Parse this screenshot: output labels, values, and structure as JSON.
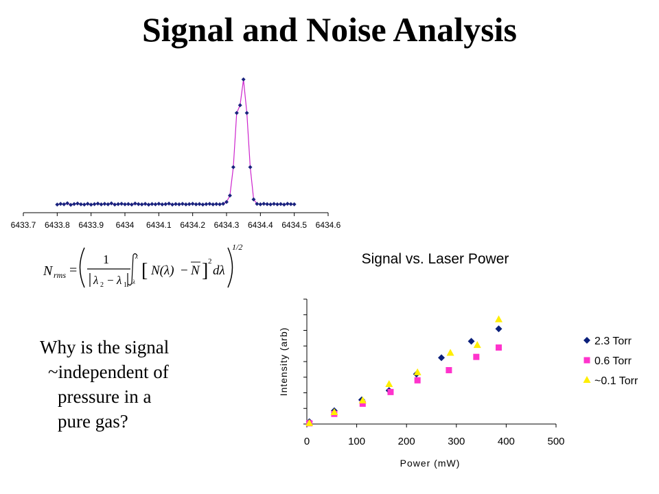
{
  "page": {
    "title": "Signal and Noise Analysis",
    "question_lines": [
      "Why is the signal",
      "~independent of",
      "pressure in a",
      "pure gas?"
    ]
  },
  "formula": {
    "lhs": "N",
    "lhs_sub": "rms",
    "numerator": "1",
    "lambda2": "λ",
    "sub2": "2",
    "lambda1": "λ",
    "sub1": "1",
    "minus": "−",
    "bracket_open": "[",
    "bracket_close": "]",
    "n_of_lambda": "N(λ)",
    "n_bar": "N",
    "sq": "2",
    "d_lambda": "dλ",
    "exponent": "1/2",
    "colors": {
      "text": "#000000"
    }
  },
  "chart_data": [
    {
      "type": "line",
      "title": "",
      "xlabel": "",
      "ylabel": "",
      "xlim": [
        6433.7,
        6434.6
      ],
      "ylim": [
        0,
        1
      ],
      "xticks": [
        "6433.7",
        "6433.8",
        "6433.9",
        "6434",
        "6434.1",
        "6434.2",
        "6434.3",
        "6434.4",
        "6434.5",
        "6434.6"
      ],
      "x": [
        6433.8,
        6433.81,
        6433.82,
        6433.83,
        6433.84,
        6433.85,
        6433.86,
        6433.87,
        6433.88,
        6433.89,
        6433.9,
        6433.91,
        6433.92,
        6433.93,
        6433.94,
        6433.95,
        6433.96,
        6433.97,
        6433.98,
        6433.99,
        6434.0,
        6434.01,
        6434.02,
        6434.03,
        6434.04,
        6434.05,
        6434.06,
        6434.07,
        6434.08,
        6434.09,
        6434.1,
        6434.11,
        6434.12,
        6434.13,
        6434.14,
        6434.15,
        6434.16,
        6434.17,
        6434.18,
        6434.19,
        6434.2,
        6434.21,
        6434.22,
        6434.23,
        6434.24,
        6434.25,
        6434.26,
        6434.27,
        6434.28,
        6434.29,
        6434.3,
        6434.31,
        6434.32,
        6434.33,
        6434.34,
        6434.35,
        6434.36,
        6434.37,
        6434.38,
        6434.39,
        6434.4,
        6434.41,
        6434.42,
        6434.43,
        6434.44,
        6434.45,
        6434.46,
        6434.47,
        6434.48,
        6434.49,
        6434.5
      ],
      "series": [
        {
          "values": [
            0.01,
            0.015,
            0.012,
            0.02,
            0.008,
            0.014,
            0.018,
            0.012,
            0.01,
            0.016,
            0.009,
            0.013,
            0.017,
            0.011,
            0.015,
            0.012,
            0.019,
            0.01,
            0.013,
            0.016,
            0.012,
            0.014,
            0.01,
            0.018,
            0.013,
            0.011,
            0.015,
            0.009,
            0.014,
            0.012,
            0.016,
            0.011,
            0.013,
            0.017,
            0.01,
            0.014,
            0.012,
            0.015,
            0.011,
            0.013,
            0.016,
            0.012,
            0.014,
            0.01,
            0.013,
            0.015,
            0.011,
            0.014,
            0.012,
            0.016,
            0.03,
            0.08,
            0.3,
            0.72,
            0.78,
            0.98,
            0.72,
            0.3,
            0.05,
            0.015,
            0.012,
            0.016,
            0.013,
            0.011,
            0.015,
            0.012,
            0.014,
            0.01,
            0.016,
            0.013,
            0.012
          ],
          "color": "#cc22cc",
          "marker_color": "#1a237e"
        }
      ]
    },
    {
      "type": "scatter",
      "title": "Signal vs. Laser Power",
      "xlabel": "Power (mW)",
      "ylabel": "Intensity (arb)",
      "xlim": [
        0,
        500
      ],
      "ylim": [
        0,
        8
      ],
      "xticks": [
        0,
        100,
        200,
        300,
        400,
        500
      ],
      "legend_position": "right",
      "series": [
        {
          "name": "2.3 Torr",
          "marker": "diamond",
          "color": "#0a1f7a",
          "x": [
            5,
            55,
            110,
            165,
            220,
            270,
            330,
            385
          ],
          "y": [
            0.15,
            0.85,
            1.55,
            2.15,
            3.2,
            4.25,
            5.3,
            6.1
          ]
        },
        {
          "name": "0.6 Torr",
          "marker": "square",
          "color": "#ff33cc",
          "x": [
            5,
            55,
            112,
            168,
            222,
            285,
            340,
            385
          ],
          "y": [
            0.05,
            0.65,
            1.3,
            2.05,
            2.8,
            3.45,
            4.3,
            4.9
          ]
        },
        {
          "name": "~0.1 Torr",
          "marker": "triangle",
          "color": "#ffee00",
          "x": [
            5,
            55,
            112,
            165,
            222,
            288,
            342,
            385
          ],
          "y": [
            0.05,
            0.75,
            1.5,
            2.55,
            3.3,
            4.55,
            5.05,
            6.7
          ]
        }
      ]
    }
  ]
}
